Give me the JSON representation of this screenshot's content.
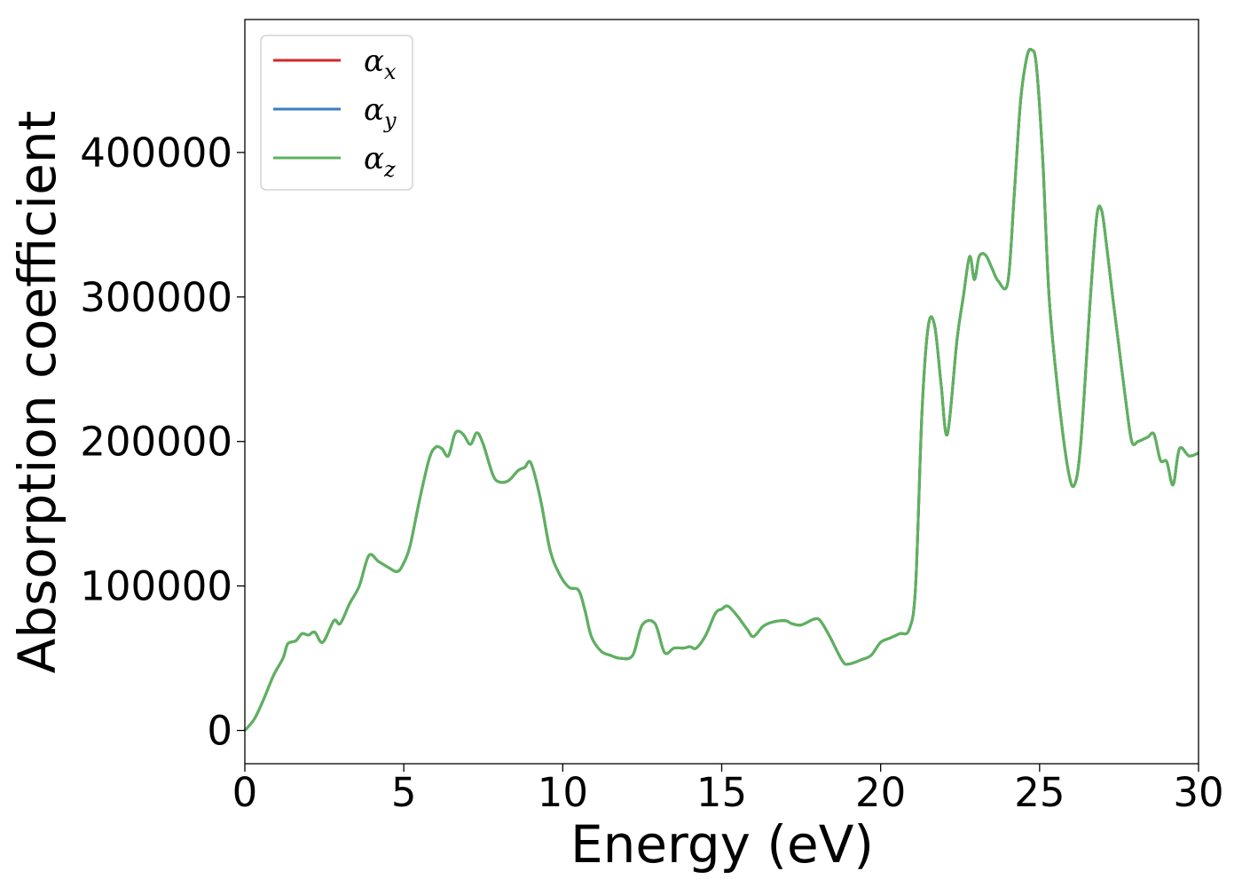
{
  "chart_data": {
    "type": "line",
    "xlabel": "Energy (eV)",
    "ylabel": "Absorption coefficient",
    "xlim": [
      0,
      30
    ],
    "ylim": [
      -23000,
      492000
    ],
    "xticks": [
      0,
      5,
      10,
      15,
      20,
      25,
      30
    ],
    "yticks": [
      0,
      100000,
      200000,
      300000,
      400000
    ],
    "xtick_labels": [
      "0",
      "5",
      "10",
      "15",
      "20",
      "25",
      "30"
    ],
    "ytick_labels": [
      "0",
      "100000",
      "200000",
      "300000",
      "400000"
    ],
    "grid": false,
    "legend_position": "top-left",
    "series": [
      {
        "name": "αx",
        "legend_symbol": "α",
        "legend_subscript": "x",
        "color": "#d62728",
        "ref": "alpha"
      },
      {
        "name": "αy",
        "legend_symbol": "α",
        "legend_subscript": "y",
        "color": "#3a7dbf",
        "ref": "alpha"
      },
      {
        "name": "αz",
        "legend_symbol": "α",
        "legend_subscript": "z",
        "color": "#5cb35c",
        "ref": "alpha"
      }
    ],
    "alpha_x": [
      0,
      0.3,
      0.6,
      0.9,
      1.2,
      1.35,
      1.6,
      1.8,
      2.0,
      2.2,
      2.45,
      2.8,
      3.0,
      3.3,
      3.6,
      3.9,
      4.2,
      4.5,
      4.8,
      5.0,
      5.2,
      5.5,
      5.8,
      6.0,
      6.2,
      6.4,
      6.6,
      6.75,
      6.9,
      7.1,
      7.3,
      7.5,
      7.8,
      8.0,
      8.3,
      8.6,
      8.8,
      9.0,
      9.3,
      9.6,
      9.9,
      10.2,
      10.5,
      10.7,
      10.9,
      11.2,
      11.5,
      11.8,
      12.2,
      12.5,
      12.9,
      13.2,
      13.5,
      13.8,
      14.0,
      14.2,
      14.5,
      14.8,
      15.0,
      15.2,
      15.5,
      15.8,
      16.0,
      16.3,
      16.6,
      17.0,
      17.2,
      17.5,
      17.9,
      18.1,
      18.4,
      18.8,
      19.0,
      19.4,
      19.7,
      20.0,
      20.3,
      20.6,
      20.9,
      21.1,
      21.3,
      21.5,
      21.7,
      21.9,
      22.1,
      22.4,
      22.6,
      22.8,
      22.95,
      23.1,
      23.3,
      23.5,
      23.7,
      24.0,
      24.2,
      24.4,
      24.6,
      24.75,
      24.9,
      25.1,
      25.3,
      25.6,
      25.9,
      26.1,
      26.3,
      26.6,
      26.8,
      26.95,
      27.1,
      27.3,
      27.5,
      27.7,
      27.9,
      28.1,
      28.4,
      28.6,
      28.8,
      29.0,
      29.2,
      29.4,
      29.7,
      30.0
    ],
    "alpha_y": [
      0,
      8000,
      22000,
      38000,
      50000,
      60000,
      62000,
      67000,
      66000,
      68000,
      61000,
      76000,
      74000,
      88000,
      100000,
      121000,
      117000,
      113000,
      110000,
      116000,
      128000,
      160000,
      188000,
      196000,
      195000,
      190000,
      205000,
      207000,
      204000,
      198000,
      206000,
      198000,
      177000,
      172000,
      173000,
      180000,
      182000,
      185000,
      160000,
      125000,
      108000,
      99000,
      97000,
      83000,
      65000,
      55000,
      52000,
      50000,
      52000,
      73000,
      74000,
      54000,
      57000,
      57000,
      58000,
      57000,
      66000,
      81000,
      84000,
      86000,
      79000,
      70000,
      65000,
      72000,
      75000,
      76000,
      74000,
      73000,
      77000,
      76000,
      65000,
      48000,
      46000,
      49000,
      52000,
      61000,
      64000,
      67000,
      70000,
      100000,
      220000,
      280000,
      280000,
      240000,
      205000,
      270000,
      300000,
      328000,
      312000,
      328000,
      329000,
      320000,
      311000,
      310000,
      370000,
      435000,
      466000,
      471000,
      460000,
      395000,
      300000,
      230000,
      180000,
      170000,
      200000,
      300000,
      356000,
      360000,
      337000,
      300000,
      265000,
      230000,
      200000,
      200000,
      203000,
      205000,
      187000,
      186000,
      170000,
      195000,
      190000,
      192000
    ]
  }
}
